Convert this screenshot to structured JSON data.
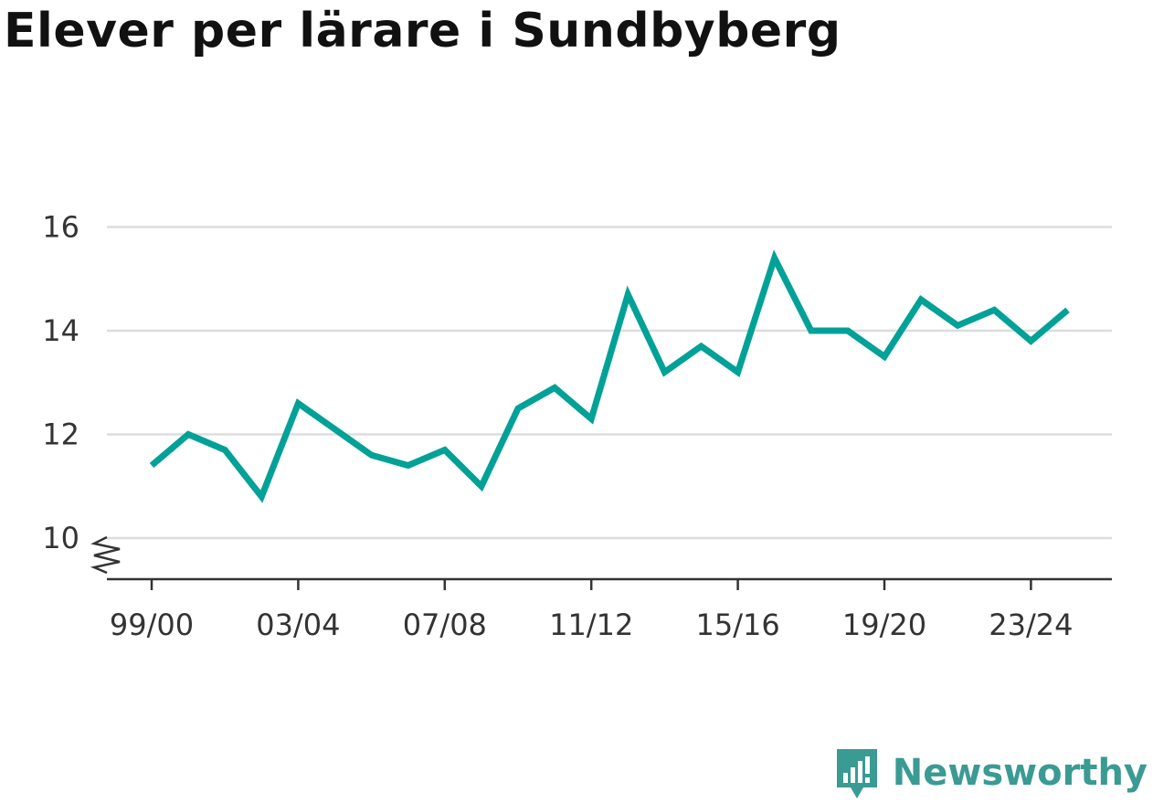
{
  "title": "Elever per lärare i Sundbyberg",
  "brand": {
    "name": "Newsworthy"
  },
  "colors": {
    "line": "#00a197",
    "grid": "#dddddd",
    "axis": "#333333",
    "brand": "#3a9b93"
  },
  "chart_data": {
    "type": "line",
    "title": "Elever per lärare i Sundbyberg",
    "xlabel": "",
    "ylabel": "",
    "ylim": [
      10,
      16
    ],
    "yticks": [
      10,
      12,
      14,
      16
    ],
    "axis_break": true,
    "grid": true,
    "x": [
      "99/00",
      "00/01",
      "01/02",
      "02/03",
      "03/04",
      "04/05",
      "05/06",
      "06/07",
      "07/08",
      "08/09",
      "09/10",
      "10/11",
      "11/12",
      "12/13",
      "13/14",
      "14/15",
      "15/16",
      "16/17",
      "17/18",
      "18/19",
      "19/20",
      "20/21",
      "21/22",
      "22/23",
      "23/24",
      "24/25"
    ],
    "xtick_labels": [
      "99/00",
      "03/04",
      "07/08",
      "11/12",
      "15/16",
      "19/20",
      "23/24"
    ],
    "series": [
      {
        "values": [
          11.4,
          12.0,
          11.7,
          10.8,
          12.6,
          12.1,
          11.6,
          11.4,
          11.7,
          11.0,
          12.5,
          12.9,
          12.3,
          14.7,
          13.2,
          13.7,
          13.2,
          15.4,
          14.0,
          14.0,
          13.5,
          14.6,
          14.1,
          14.4,
          13.8,
          14.4
        ]
      }
    ]
  }
}
